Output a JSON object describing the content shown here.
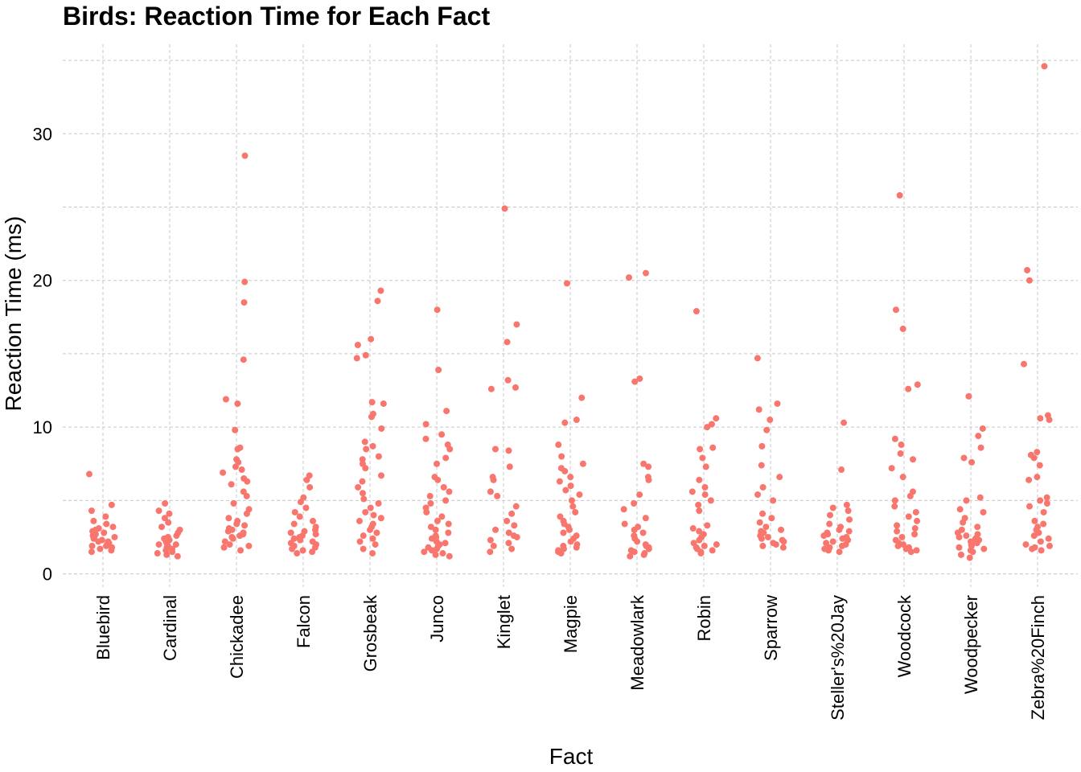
{
  "chart_data": {
    "type": "strip",
    "title": "Birds: Reaction Time for Each Fact",
    "xlabel": "Fact",
    "ylabel": "Reaction Time (ms)",
    "color": "#F8766D",
    "grid": true,
    "categories": [
      "Bluebird",
      "Cardinal",
      "Chickadee",
      "Falcon",
      "Grosbeak",
      "Junco",
      "Kinglet",
      "Magpie",
      "Meadowlark",
      "Robin",
      "Sparrow",
      "Steller's%20Jay",
      "Woodcock",
      "Woodpecker",
      "Zebra%20Finch"
    ],
    "ylim": [
      -0.9,
      36.1
    ],
    "yticks": [
      0,
      10,
      20,
      30
    ],
    "minor_yticks": [
      5,
      15,
      25,
      35
    ],
    "values": [
      [
        6.8,
        4.7,
        4.3,
        3.9,
        3.6,
        3.4,
        3.2,
        3.0,
        2.9,
        2.7,
        2.6,
        2.5,
        2.4,
        2.3,
        2.2,
        2.1,
        2.0,
        1.9,
        1.8,
        1.7,
        1.6,
        1.5,
        2.8,
        3.1,
        2.5,
        2.2,
        1.9
      ],
      [
        4.8,
        4.3,
        4.1,
        3.8,
        3.5,
        3.2,
        3.0,
        2.8,
        2.6,
        2.5,
        2.3,
        2.2,
        2.1,
        2.0,
        1.9,
        1.8,
        1.7,
        1.6,
        1.5,
        1.4,
        1.3,
        1.2,
        2.4,
        2.0
      ],
      [
        28.5,
        19.9,
        18.5,
        14.6,
        11.9,
        11.6,
        9.8,
        8.6,
        8.5,
        7.8,
        7.6,
        7.3,
        7.1,
        6.9,
        6.5,
        6.3,
        6.1,
        5.6,
        5.3,
        4.8,
        4.4,
        4.1,
        3.8,
        3.6,
        3.4,
        3.3,
        3.1,
        3.0,
        2.9,
        2.8,
        2.7,
        2.6,
        2.5,
        2.4,
        2.2,
        2.0,
        1.9,
        1.8,
        1.6
      ],
      [
        6.7,
        6.4,
        5.9,
        5.2,
        4.9,
        4.5,
        4.2,
        3.9,
        3.6,
        3.4,
        3.2,
        3.0,
        2.9,
        2.8,
        2.7,
        2.6,
        2.5,
        2.4,
        2.3,
        2.2,
        2.1,
        2.0,
        1.9,
        1.8,
        1.7,
        1.6,
        1.5,
        1.4
      ],
      [
        19.3,
        18.6,
        16.0,
        15.6,
        14.9,
        14.7,
        11.7,
        11.6,
        10.9,
        10.7,
        9.9,
        9.0,
        8.7,
        8.5,
        8.0,
        7.8,
        7.5,
        7.2,
        6.7,
        6.3,
        5.9,
        5.5,
        5.1,
        4.8,
        4.5,
        4.2,
        4.0,
        3.8,
        3.6,
        3.4,
        3.2,
        3.0,
        2.8,
        2.6,
        2.4,
        2.2,
        2.0,
        1.7,
        1.4
      ],
      [
        18.0,
        13.9,
        11.1,
        10.2,
        9.5,
        9.2,
        8.8,
        8.5,
        7.9,
        7.5,
        6.6,
        6.4,
        5.9,
        5.6,
        5.3,
        5.0,
        4.8,
        4.5,
        4.2,
        3.9,
        3.6,
        3.4,
        3.2,
        3.0,
        2.8,
        2.6,
        2.5,
        2.4,
        2.2,
        2.1,
        2.0,
        1.9,
        1.8,
        1.7,
        1.6,
        1.5,
        1.4,
        1.3,
        1.2
      ],
      [
        24.9,
        17.0,
        15.8,
        13.2,
        12.7,
        12.6,
        8.5,
        8.4,
        7.3,
        6.6,
        6.4,
        5.6,
        5.3,
        4.6,
        4.1,
        3.6,
        3.3,
        3.0,
        2.8,
        2.6,
        2.5,
        2.3,
        2.1,
        1.9,
        1.7,
        1.5
      ],
      [
        19.8,
        12.0,
        10.5,
        10.3,
        8.8,
        8.0,
        7.5,
        7.2,
        7.0,
        6.6,
        6.3,
        6.0,
        5.7,
        5.4,
        5.0,
        4.6,
        4.2,
        3.9,
        3.6,
        3.4,
        3.2,
        3.0,
        2.8,
        2.6,
        2.4,
        2.2,
        2.0,
        1.9,
        1.8,
        1.7,
        1.6,
        1.5,
        1.4
      ],
      [
        20.2,
        20.5,
        13.3,
        13.1,
        7.5,
        7.3,
        6.6,
        6.4,
        5.4,
        4.8,
        4.4,
        3.8,
        3.4,
        3.2,
        3.0,
        2.8,
        2.6,
        2.4,
        2.2,
        2.0,
        1.9,
        1.8,
        1.7,
        1.6,
        1.5,
        1.4,
        1.3,
        1.2
      ],
      [
        17.9,
        10.6,
        10.2,
        10.0,
        8.6,
        8.5,
        7.9,
        7.3,
        6.4,
        5.9,
        5.6,
        5.4,
        5.0,
        4.7,
        4.3,
        3.3,
        3.1,
        2.9,
        2.7,
        2.5,
        2.3,
        2.1,
        2.0,
        1.9,
        1.8,
        1.7,
        1.6,
        1.5,
        1.4
      ],
      [
        14.7,
        11.6,
        11.2,
        10.5,
        9.8,
        8.7,
        7.4,
        6.6,
        5.9,
        5.4,
        5.0,
        4.1,
        3.8,
        3.5,
        3.2,
        3.0,
        2.9,
        2.8,
        2.7,
        2.6,
        2.5,
        2.4,
        2.3,
        2.2,
        2.1,
        2.0,
        1.9,
        1.8
      ],
      [
        10.3,
        7.1,
        4.7,
        4.5,
        4.3,
        4.0,
        3.7,
        3.4,
        3.2,
        3.0,
        2.9,
        2.8,
        2.7,
        2.6,
        2.5,
        2.4,
        2.3,
        2.2,
        2.1,
        2.0,
        1.9,
        1.8,
        1.7,
        1.6,
        1.5
      ],
      [
        25.8,
        18.0,
        16.7,
        12.9,
        12.6,
        9.2,
        8.8,
        8.2,
        7.8,
        7.2,
        6.6,
        5.6,
        5.3,
        5.0,
        4.6,
        4.2,
        3.9,
        3.6,
        3.3,
        3.1,
        2.9,
        2.7,
        2.5,
        2.3,
        2.1,
        2.0,
        1.9,
        1.8,
        1.7,
        1.6,
        1.5
      ],
      [
        12.1,
        9.9,
        9.4,
        8.6,
        7.9,
        7.6,
        5.2,
        5.0,
        4.4,
        4.2,
        3.8,
        3.5,
        3.2,
        3.0,
        2.8,
        2.7,
        2.6,
        2.5,
        2.4,
        2.3,
        2.2,
        2.1,
        2.0,
        1.9,
        1.8,
        1.7,
        1.6,
        1.5,
        1.3,
        1.1
      ],
      [
        34.6,
        20.7,
        20.0,
        14.3,
        10.8,
        10.6,
        10.5,
        8.3,
        8.1,
        7.9,
        7.4,
        6.6,
        6.4,
        5.2,
        5.0,
        4.8,
        4.6,
        4.2,
        3.6,
        3.4,
        3.2,
        3.0,
        2.8,
        2.6,
        2.4,
        2.2,
        2.0,
        1.9,
        1.8,
        1.7,
        1.6
      ]
    ]
  }
}
